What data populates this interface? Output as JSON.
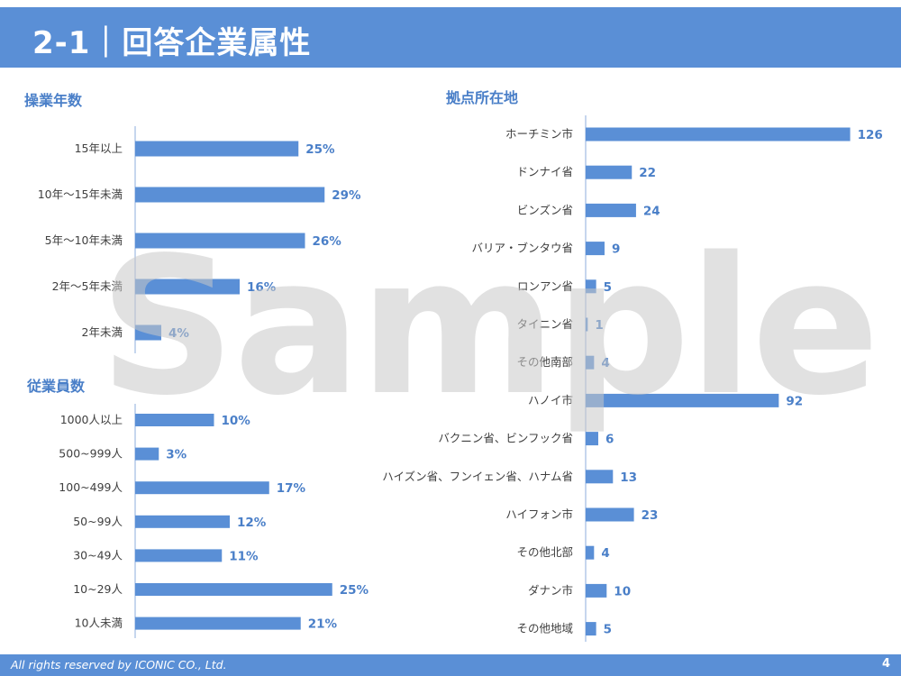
{
  "header": {
    "title": "2-1｜回答企業属性"
  },
  "watermark": "Sample",
  "footer": {
    "copyright": "All rights reserved by ICONIC CO., Ltd.",
    "page_number": "4"
  },
  "colors": {
    "bar": "#5a8fd6",
    "accent": "#4a7fc8",
    "header": "#5a8fd6"
  },
  "chart_data": [
    {
      "id": "years",
      "type": "bar",
      "orientation": "horizontal",
      "title": "操業年数",
      "categories": [
        "15年以上",
        "10年～15年未満",
        "5年～10年未満",
        "2年～5年未満",
        "2年未満"
      ],
      "values": [
        25,
        29,
        26,
        16,
        4
      ],
      "labels": [
        "25%",
        "29%",
        "26%",
        "16%",
        "4%"
      ],
      "unit": "%",
      "xlim": [
        0,
        35
      ]
    },
    {
      "id": "employees",
      "type": "bar",
      "orientation": "horizontal",
      "title": "従業員数",
      "categories": [
        "1000人以上",
        "500~999人",
        "100~499人",
        "50~99人",
        "30~49人",
        "10~29人",
        "10人未満"
      ],
      "values": [
        10,
        3,
        17,
        12,
        11,
        25,
        21
      ],
      "labels": [
        "10%",
        "3%",
        "17%",
        "12%",
        "11%",
        "25%",
        "21%"
      ],
      "unit": "%",
      "xlim": [
        0,
        35
      ]
    },
    {
      "id": "locations",
      "type": "bar",
      "orientation": "horizontal",
      "title": "拠点所在地",
      "categories": [
        "ホーチミン市",
        "ドンナイ省",
        "ビンズン省",
        "バリア・ブンタウ省",
        "ロンアン省",
        "タイニン省",
        "その他南部",
        "ハノイ市",
        "バクニン省、ビンフック省",
        "ハイズン省、フンイェン省、ハナム省",
        "ハイフォン市",
        "その他北部",
        "ダナン市",
        "その他地域"
      ],
      "values": [
        126,
        22,
        24,
        9,
        5,
        1,
        4,
        92,
        6,
        13,
        23,
        4,
        10,
        5
      ],
      "labels": [
        "126",
        "22",
        "24",
        "9",
        "5",
        "1",
        "4",
        "92",
        "6",
        "13",
        "23",
        "4",
        "10",
        "5"
      ],
      "xlim": [
        0,
        126
      ]
    }
  ]
}
